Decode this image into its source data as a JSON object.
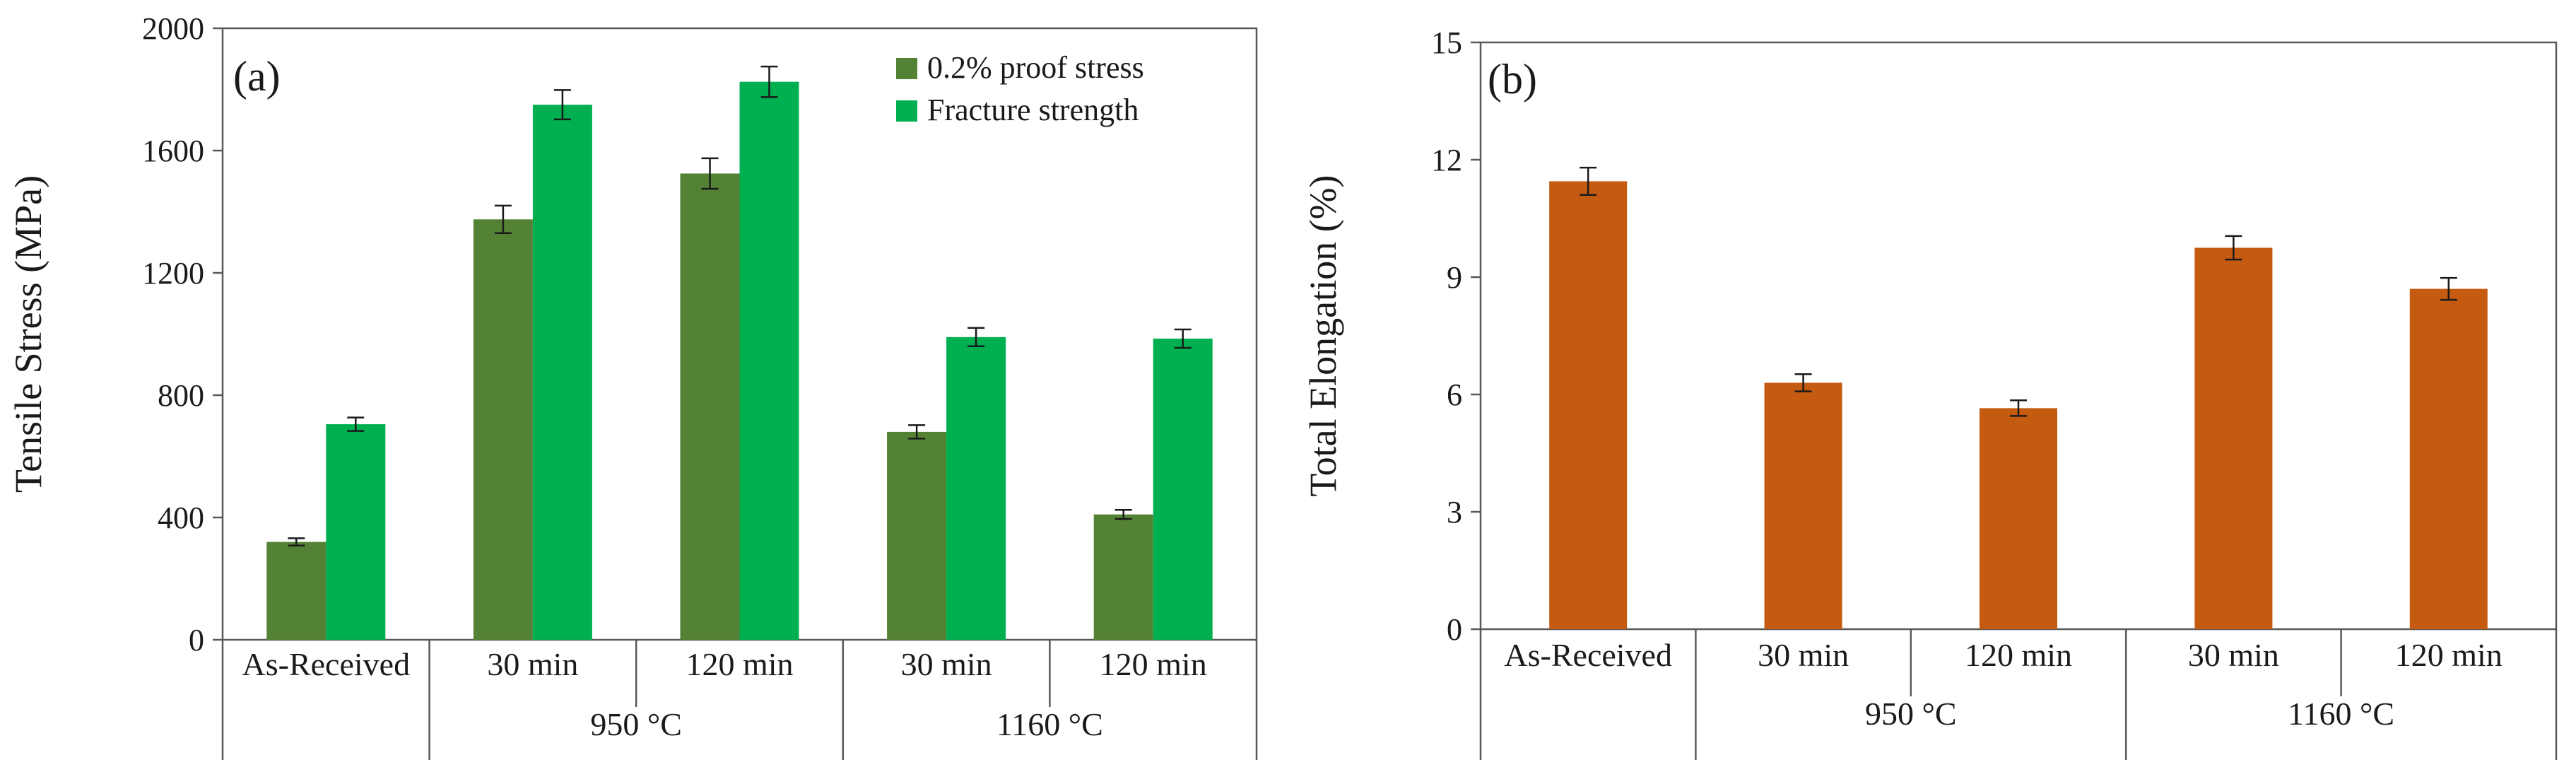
{
  "chart_data": [
    {
      "type": "bar",
      "panel_label": "(a)",
      "title": "",
      "xlabel": "",
      "ylabel": "Tensile Stress (MPa)",
      "ylim": [
        0,
        2000
      ],
      "yticks": [
        "0",
        "400",
        "800",
        "1200",
        "1600",
        "2000"
      ],
      "categories": [
        "As-Received",
        "30 min",
        "120 min",
        "30 min",
        "120 min"
      ],
      "groups": [
        {
          "label": "",
          "span": [
            0,
            0
          ]
        },
        {
          "label": "950 °C",
          "span": [
            1,
            2
          ]
        },
        {
          "label": "1160 °C",
          "span": [
            3,
            4
          ]
        }
      ],
      "legend_position": "top-right",
      "series": [
        {
          "name": "0.2% proof stress",
          "color": "#548235",
          "values": [
            320,
            1375,
            1525,
            680,
            410
          ],
          "errors": [
            12,
            45,
            50,
            22,
            15
          ]
        },
        {
          "name": "Fracture strength",
          "color": "#00b050",
          "values": [
            705,
            1750,
            1825,
            990,
            985
          ],
          "errors": [
            22,
            48,
            50,
            30,
            30
          ]
        }
      ]
    },
    {
      "type": "bar",
      "panel_label": "(b)",
      "title": "",
      "xlabel": "",
      "ylabel": "Total Elongation (%)",
      "ylim": [
        0,
        15
      ],
      "yticks": [
        "0",
        "3",
        "6",
        "9",
        "12",
        "15"
      ],
      "categories": [
        "As-Received",
        "30 min",
        "120 min",
        "30 min",
        "120 min"
      ],
      "groups": [
        {
          "label": "",
          "span": [
            0,
            0
          ]
        },
        {
          "label": "950 °C",
          "span": [
            1,
            2
          ]
        },
        {
          "label": "1160 °C",
          "span": [
            3,
            4
          ]
        }
      ],
      "series": [
        {
          "name": "Total Elongation",
          "color": "#c55a11",
          "values": [
            11.45,
            6.3,
            5.65,
            9.75,
            8.7
          ],
          "errors": [
            0.35,
            0.22,
            0.2,
            0.3,
            0.28
          ]
        }
      ]
    }
  ]
}
